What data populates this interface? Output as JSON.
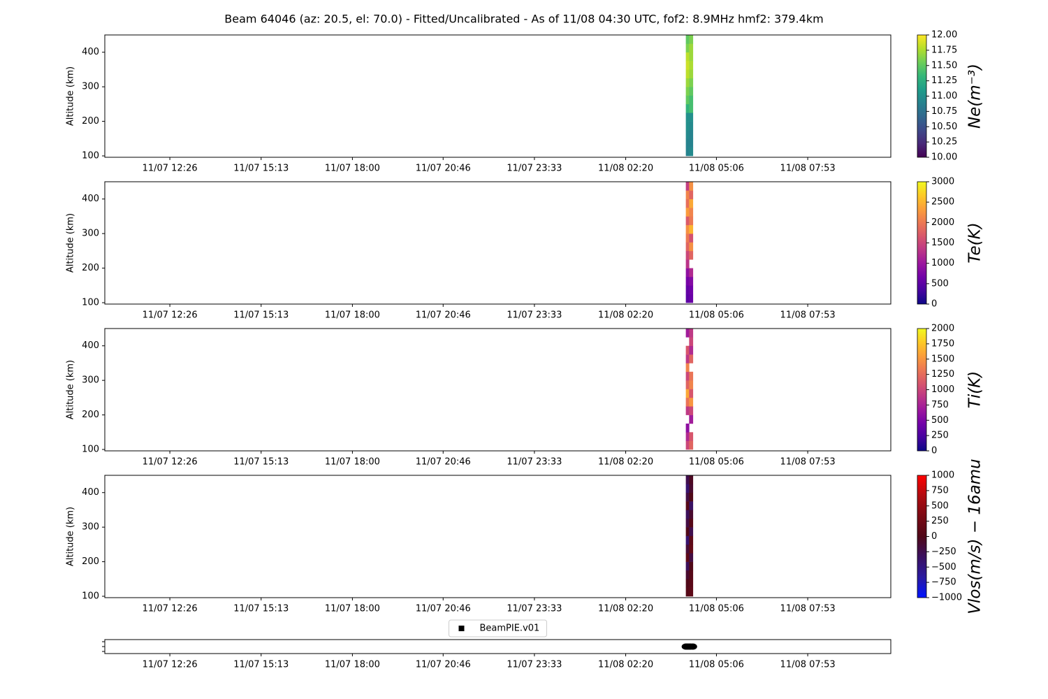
{
  "chart_data": {
    "title": "Beam 64046 (az: 20.5, el: 70.0) - Fitted/Uncalibrated - As of 11/08 04:30 UTC, fof2: 8.9MHz  hmf2: 379.4km",
    "xlim": [
      "11/07 10:27",
      "11/08 10:25"
    ],
    "xticks": [
      "11/07 12:26",
      "11/07 15:13",
      "11/07 18:00",
      "11/07 20:46",
      "11/07 23:33",
      "11/08 02:20",
      "11/08 05:06",
      "11/08 07:53"
    ],
    "panels": [
      {
        "type": "heatmap",
        "ylabel": "Altitude (km)",
        "ylim": [
          96,
          450
        ],
        "yticks": [
          100,
          200,
          300,
          400
        ],
        "x_edges": [
          "11/08 04:10",
          "11/08 04:16",
          "11/08 04:23"
        ],
        "y_edges": [
          100,
          125,
          150,
          175,
          200,
          225,
          250,
          275,
          300,
          325,
          350,
          375,
          400,
          425,
          450
        ],
        "values": [
          [
            10.9,
            10.95
          ],
          [
            10.9,
            10.9
          ],
          [
            10.95,
            10.9
          ],
          [
            11.0,
            10.95
          ],
          [
            11.0,
            11.0
          ],
          [
            11.3,
            11.4
          ],
          [
            11.5,
            11.4
          ],
          [
            11.6,
            11.5
          ],
          [
            11.7,
            11.6
          ],
          [
            11.8,
            11.7
          ],
          [
            11.85,
            11.75
          ],
          [
            11.8,
            11.7
          ],
          [
            11.6,
            11.7
          ],
          [
            11.5,
            11.6
          ]
        ],
        "colorbar": {
          "label": "Ne(m⁻³)",
          "lim": [
            10,
            12
          ],
          "ticks": [
            {
              "value": 10,
              "label": "10.00"
            },
            10.25,
            {
              "value": 10.5,
              "label": "10.50"
            },
            10.75,
            {
              "value": 11,
              "label": "11.00"
            },
            11.25,
            {
              "value": 11.5,
              "label": "11.50"
            },
            11.75,
            {
              "value": 12,
              "label": "12.00"
            }
          ],
          "colors": [
            "#440154",
            "#482878",
            "#3e4989",
            "#31688e",
            "#26828e",
            "#1f9e89",
            "#35b779",
            "#6ece58",
            "#b5de2b",
            "#fde725"
          ]
        }
      },
      {
        "type": "heatmap",
        "ylabel": "Altitude (km)",
        "ylim": [
          96,
          450
        ],
        "yticks": [
          100,
          200,
          300,
          400
        ],
        "x_edges": [
          "11/08 04:10",
          "11/08 04:16",
          "11/08 04:23"
        ],
        "y_edges": [
          100,
          125,
          150,
          175,
          200,
          225,
          250,
          275,
          300,
          325,
          350,
          375,
          400,
          425,
          450
        ],
        "values": [
          [
            500,
            600
          ],
          [
            550,
            650
          ],
          [
            700,
            800
          ],
          [
            900,
            1200
          ],
          [
            1300,
            null
          ],
          [
            1500,
            1800
          ],
          [
            1800,
            2200
          ],
          [
            2000,
            1600
          ],
          [
            2200,
            2500
          ],
          [
            1700,
            2000
          ],
          [
            2300,
            2100
          ],
          [
            1900,
            2400
          ],
          [
            2100,
            1800
          ],
          [
            1400,
            2200
          ]
        ],
        "colorbar": {
          "label": "Te(K)",
          "lim": [
            0,
            3000
          ],
          "ticks": [
            0,
            500,
            1000,
            1500,
            2000,
            2500,
            3000
          ],
          "colors": [
            "#0d0887",
            "#46039f",
            "#7201a8",
            "#9c179e",
            "#bd3786",
            "#d8576b",
            "#ed7953",
            "#fb9f3a",
            "#fdca26",
            "#f0f921"
          ]
        }
      },
      {
        "type": "heatmap",
        "ylabel": "Altitude (km)",
        "ylim": [
          96,
          450
        ],
        "yticks": [
          100,
          200,
          300,
          400
        ],
        "x_edges": [
          "11/08 04:10",
          "11/08 04:16",
          "11/08 04:23"
        ],
        "y_edges": [
          100,
          125,
          150,
          175,
          200,
          225,
          250,
          275,
          300,
          325,
          350,
          375,
          400,
          425,
          450
        ],
        "values": [
          [
            1000,
            1200
          ],
          [
            800,
            1100
          ],
          [
            600,
            null
          ],
          [
            null,
            700
          ],
          [
            900,
            1000
          ],
          [
            1300,
            1500
          ],
          [
            1600,
            1100
          ],
          [
            1200,
            1400
          ],
          [
            1000,
            1300
          ],
          [
            1400,
            null
          ],
          [
            900,
            1200
          ],
          [
            1100,
            800
          ],
          [
            null,
            1000
          ],
          [
            700,
            900
          ]
        ],
        "colorbar": {
          "label": "Ti(K)",
          "lim": [
            0,
            2000
          ],
          "ticks": [
            0,
            250,
            500,
            750,
            1000,
            1250,
            1500,
            1750,
            2000
          ],
          "colors": [
            "#0d0887",
            "#46039f",
            "#7201a8",
            "#9c179e",
            "#bd3786",
            "#d8576b",
            "#ed7953",
            "#fb9f3a",
            "#fdca26",
            "#f0f921"
          ]
        }
      },
      {
        "type": "heatmap",
        "ylabel": "Altitude (km)",
        "ylim": [
          96,
          450
        ],
        "yticks": [
          100,
          200,
          300,
          400
        ],
        "x_edges": [
          "11/08 04:10",
          "11/08 04:16",
          "11/08 04:23"
        ],
        "y_edges": [
          100,
          125,
          150,
          175,
          200,
          225,
          250,
          275,
          300,
          325,
          350,
          375,
          400,
          425,
          450
        ],
        "values": [
          [
            50,
            100
          ],
          [
            0,
            80
          ],
          [
            -100,
            50
          ],
          [
            -300,
            0
          ],
          [
            100,
            -200
          ],
          [
            -150,
            150
          ],
          [
            -400,
            100
          ],
          [
            0,
            -250
          ],
          [
            -200,
            50
          ],
          [
            -300,
            -100
          ],
          [
            50,
            -350
          ],
          [
            -200,
            0
          ],
          [
            -400,
            -100
          ],
          [
            -250,
            -50
          ]
        ],
        "colorbar": {
          "label": "Vlos(m/s) − 16amu",
          "lim": [
            -1000,
            1000
          ],
          "ticks": [
            {
              "value": -1000,
              "label": "−1000"
            },
            {
              "value": -750,
              "label": "−750"
            },
            {
              "value": -500,
              "label": "−500"
            },
            {
              "value": -250,
              "label": "−250"
            },
            0,
            250,
            500,
            750,
            1000
          ],
          "colors": [
            "#0014ff",
            "#2a1aa0",
            "#3a1060",
            "#500818",
            "#7a0a14",
            "#b00c10",
            "#ff0000"
          ]
        }
      },
      {
        "type": "scatter",
        "legend": "upper center",
        "series": [
          {
            "name": "BeamPIE.v01",
            "color": "#000000",
            "x": [
              "11/08 04:10",
              "11/08 04:13",
              "11/08 04:16",
              "11/08 04:19",
              "11/08 04:23"
            ]
          }
        ]
      }
    ]
  }
}
